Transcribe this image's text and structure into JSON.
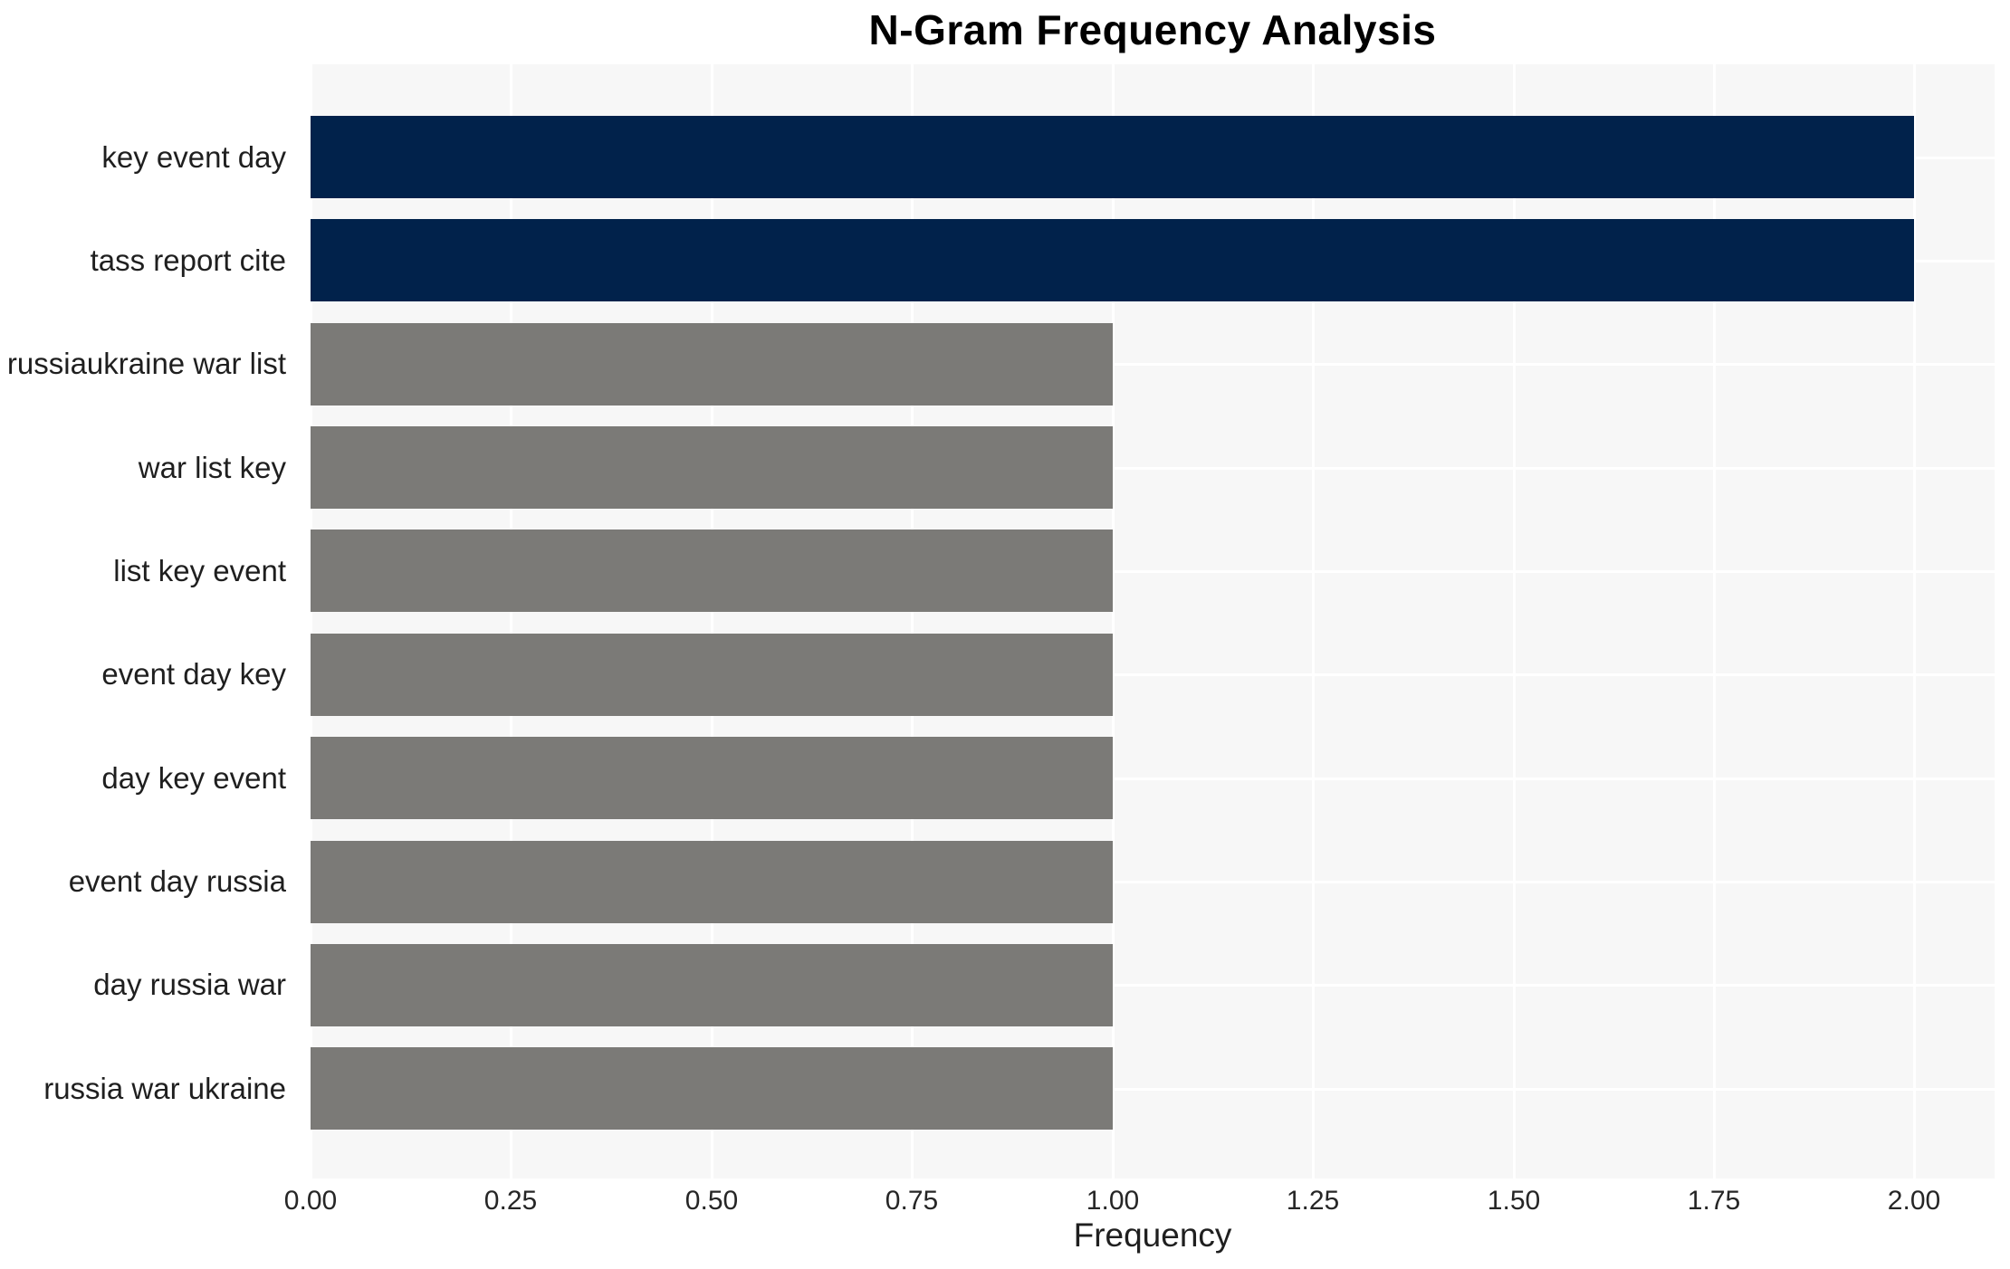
{
  "chart_data": {
    "type": "bar",
    "orientation": "horizontal",
    "title": "N-Gram Frequency Analysis",
    "xlabel": "Frequency",
    "ylabel": "",
    "categories": [
      "key event day",
      "tass report cite",
      "russiaukraine war list",
      "war list key",
      "list key event",
      "event day key",
      "day key event",
      "event day russia",
      "day russia war",
      "russia war ukraine"
    ],
    "values": [
      2,
      2,
      1,
      1,
      1,
      1,
      1,
      1,
      1,
      1
    ],
    "bar_colors": [
      "#01224b",
      "#01224b",
      "#7b7a77",
      "#7b7a77",
      "#7b7a77",
      "#7b7a77",
      "#7b7a77",
      "#7b7a77",
      "#7b7a77",
      "#7b7a77"
    ],
    "xlim": [
      0,
      2.1
    ],
    "xticks": [
      0,
      0.25,
      0.5,
      0.75,
      1,
      1.25,
      1.5,
      1.75,
      2
    ],
    "xtick_labels": [
      "0.00",
      "0.25",
      "0.50",
      "0.75",
      "1.00",
      "1.25",
      "1.50",
      "1.75",
      "2.00"
    ],
    "grid": true,
    "legend": false,
    "colors": {
      "highlight": "#01224b",
      "muted": "#7b7a77",
      "plot_background": "#f7f7f7",
      "gridline": "#ffffff"
    }
  }
}
